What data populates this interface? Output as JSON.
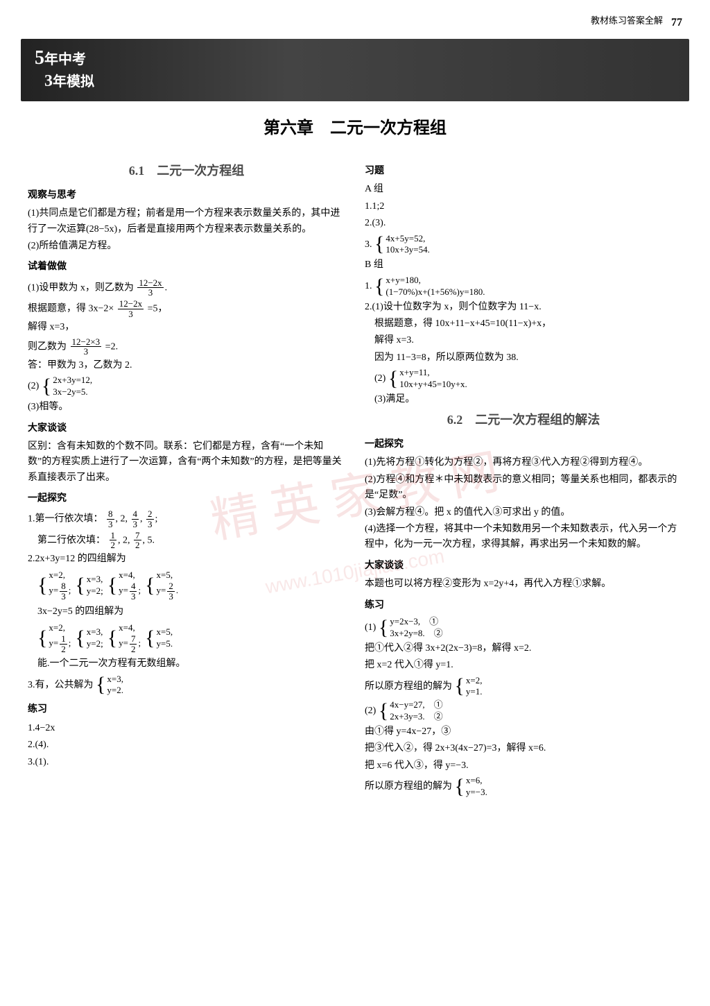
{
  "header": {
    "label": "教材练习答案全解",
    "page_number": "77"
  },
  "banner": {
    "line1_big": "5",
    "line1_rest": "年中考",
    "line2_big": "3",
    "line2_rest": "年模拟"
  },
  "chapter_title": "第六章　二元一次方程组",
  "watermark_text": "精 英 家 教 网",
  "watermark_url": "www.1010jiajiao.com",
  "left": {
    "sec61_title": "6.1　二元一次方程组",
    "h_guancha": "观察与思考",
    "gc1": "(1)共同点是它们都是方程；前者是用一个方程来表示数量关系的，其中进行了一次运算(28−5x)，后者是直接用两个方程来表示数量关系的。",
    "gc2": "(2)所给值满足方程。",
    "h_shizuo": "试着做做",
    "sz1_a": "(1)设甲数为 x，则乙数为",
    "sz1_frac_num": "12−2x",
    "sz1_frac_den": "3",
    "sz1_b": "根据题意，得 3x−2×",
    "sz1_c": "=5，",
    "sz1_d": "解得 x=3，",
    "sz1_e": "则乙数为",
    "sz1_e_fracnum": "12−2×3",
    "sz1_e_fracden": "3",
    "sz1_e_tail": "=2.",
    "sz1_f": "答：甲数为 3，乙数为 2.",
    "sz2_pre": "(2)",
    "sz2_eq1": "2x+3y=12,",
    "sz2_eq2": "3x−2y=5.",
    "sz3": "(3)相等。",
    "h_dajia": "大家谈谈",
    "dj1": "区别：含有未知数的个数不同。联系：它们都是方程，含有“一个未知数”的方程实质上进行了一次运算，含有“两个未知数”的方程，是把等量关系直接表示了出来。",
    "h_yiqi": "一起探究",
    "yq1_head": "1.第一行依次填：",
    "yq1_f1n": "8",
    "yq1_f1d": "3",
    "yq1_f2": "2",
    "yq1_f3n": "4",
    "yq1_f3d": "3",
    "yq1_f4n": "2",
    "yq1_f4d": "3",
    "yq1b_head": "第二行依次填：",
    "yq1b_f1n": "1",
    "yq1b_f1d": "2",
    "yq1b_f2": "2",
    "yq1b_f3n": "7",
    "yq1b_f3d": "2",
    "yq1b_f4": "5",
    "yq2_head": "2.2x+3y=12 的四组解为",
    "yq2_sols": [
      {
        "x": "x=2,",
        "y_num": "8",
        "y_den": "3"
      },
      {
        "x": "x=3,",
        "y": "y=2;"
      },
      {
        "x": "x=4,",
        "y_num": "4",
        "y_den": "3"
      },
      {
        "x": "x=5,",
        "y_num": "2",
        "y_den": "3"
      }
    ],
    "yq2b_head": "3x−2y=5 的四组解为",
    "yq2b_sols": [
      {
        "x": "x=2,",
        "y_num": "1",
        "y_den": "2"
      },
      {
        "x": "x=3,",
        "y": "y=2;"
      },
      {
        "x": "x=4,",
        "y_num": "7",
        "y_den": "2"
      },
      {
        "x": "x=5,",
        "y": "y=5."
      }
    ],
    "yq2_tail": "能.一个二元一次方程有无数组解。",
    "yq3_head": "3.有，公共解为",
    "yq3_x": "x=3,",
    "yq3_y": "y=2.",
    "h_lianxi": "练习",
    "lx1": "1.4−2x",
    "lx2": "2.(4).",
    "lx3": "3.(1)."
  },
  "right": {
    "h_xiti": "习题",
    "h_azu": "A 组",
    "a1": "1.1;2",
    "a2": "2.(3).",
    "a3_pre": "3.",
    "a3_e1": "4x+5y=52,",
    "a3_e2": "10x+3y=54.",
    "h_bzu": "B 组",
    "b1_pre": "1.",
    "b1_e1": "x+y=180,",
    "b1_e2": "(1−70%)x+(1+56%)y=180.",
    "b2a": "2.(1)设十位数字为 x，则个位数字为 11−x.",
    "b2b": "根据题意，得 10x+11−x+45=10(11−x)+x，",
    "b2c": "解得 x=3.",
    "b2d": "因为 11−3=8，所以原两位数为 38.",
    "b2_2_pre": "(2)",
    "b2_2_e1": "x+y=11,",
    "b2_2_e2": "10x+y+45=10y+x.",
    "b2_3": "(3)满足。",
    "sec62_title": "6.2　二元一次方程组的解法",
    "h_yiqi2": "一起探究",
    "y2_1": "(1)先将方程①转化为方程②，再将方程③代入方程②得到方程④。",
    "y2_2": "(2)方程④和方程＊中未知数表示的意义相同；等量关系也相同，都表示的是“足数”。",
    "y2_3": "(3)会解方程④。把 x 的值代入③可求出 y 的值。",
    "y2_4": "(4)选择一个方程，将其中一个未知数用另一个未知数表示，代入另一个方程中，化为一元一次方程，求得其解，再求出另一个未知数的解。",
    "h_dajia2": "大家谈谈",
    "dj2": "本题也可以将方程②变形为 x=2y+4，再代入方程①求解。",
    "h_lianxi2": "练习",
    "lx2_1_pre": "(1)",
    "lx2_1_e1": "y=2x−3,　①",
    "lx2_1_e2": "3x+2y=8.　②",
    "lx2_1a": "把①代入②得 3x+2(2x−3)=8，解得 x=2.",
    "lx2_1b": "把 x=2 代入①得 y=1.",
    "lx2_1c": "所以原方程组的解为",
    "lx2_1_sx": "x=2,",
    "lx2_1_sy": "y=1.",
    "lx2_2_pre": "(2)",
    "lx2_2_e1": "4x−y=27,　①",
    "lx2_2_e2": "2x+3y=3.　②",
    "lx2_2a": "由①得 y=4x−27，③",
    "lx2_2b": "把③代入②，得 2x+3(4x−27)=3，解得 x=6.",
    "lx2_2c": "把 x=6 代入③，得 y=−3.",
    "lx2_2d": "所以原方程组的解为",
    "lx2_2_sx": "x=6,",
    "lx2_2_sy": "y=−3."
  },
  "colors": {
    "text": "#000000",
    "banner_bg": "#333333",
    "section_title": "#4a4a4a",
    "watermark": "rgba(200,30,30,0.12)"
  }
}
